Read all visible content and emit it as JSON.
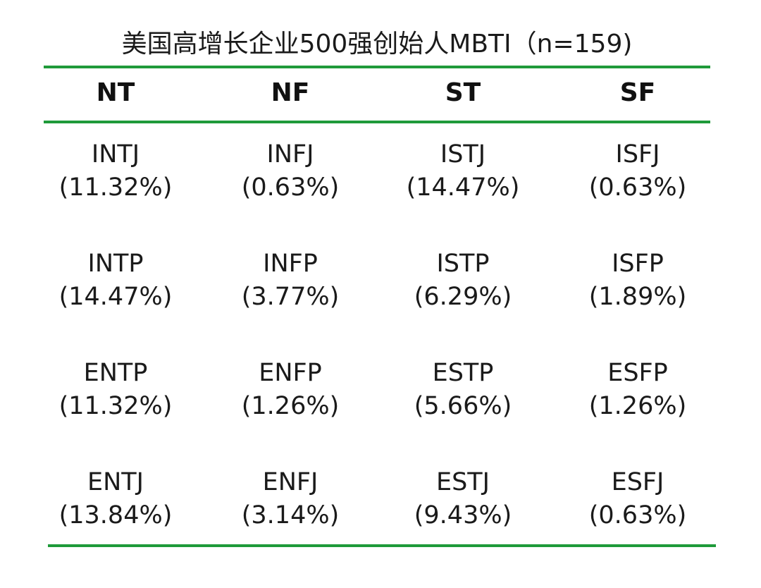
{
  "chart_data": {
    "type": "table",
    "title": "美国高增长企业500强创始人MBTI（n=159)",
    "columns": [
      "NT",
      "NF",
      "ST",
      "SF"
    ],
    "rows": [
      [
        {
          "type": "INTJ",
          "pct": "(11.32%)"
        },
        {
          "type": "INFJ",
          "pct": "(0.63%)"
        },
        {
          "type": "ISTJ",
          "pct": "(14.47%)"
        },
        {
          "type": "ISFJ",
          "pct": "(0.63%)"
        }
      ],
      [
        {
          "type": "INTP",
          "pct": "(14.47%)"
        },
        {
          "type": "INFP",
          "pct": "(3.77%)"
        },
        {
          "type": "ISTP",
          "pct": "(6.29%)"
        },
        {
          "type": "ISFP",
          "pct": "(1.89%)"
        }
      ],
      [
        {
          "type": "ENTP",
          "pct": "(11.32%)"
        },
        {
          "type": "ENFP",
          "pct": "(1.26%)"
        },
        {
          "type": "ESTP",
          "pct": "(5.66%)"
        },
        {
          "type": "ESFP",
          "pct": "(1.26%)"
        }
      ],
      [
        {
          "type": "ENTJ",
          "pct": "(13.84%)"
        },
        {
          "type": "ENFJ",
          "pct": "(3.14%)"
        },
        {
          "type": "ESTJ",
          "pct": "(9.43%)"
        },
        {
          "type": "ESFJ",
          "pct": "(0.63%)"
        }
      ]
    ]
  },
  "colors": {
    "rule": "#1f9a3a",
    "text": "#1a1a1a"
  }
}
